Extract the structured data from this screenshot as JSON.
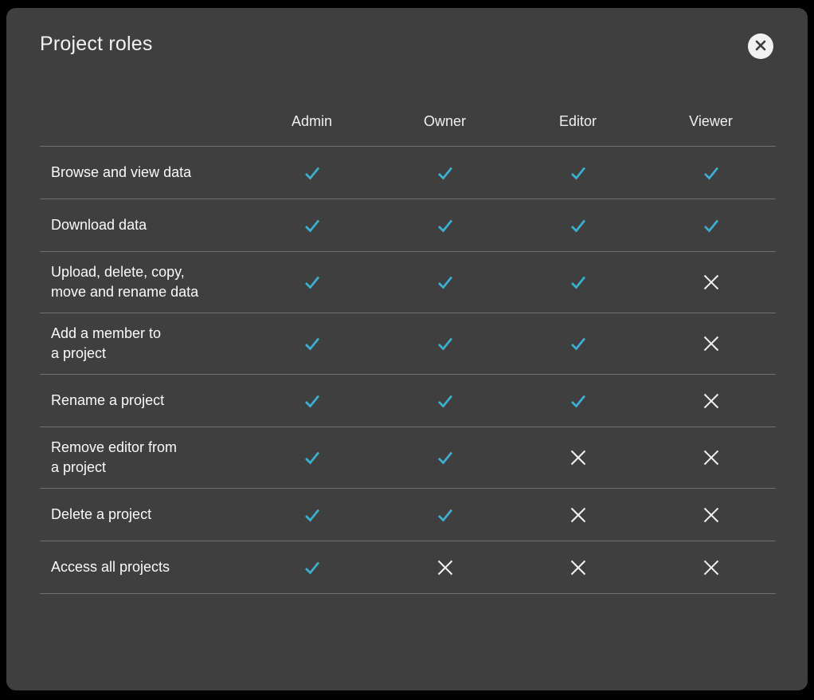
{
  "modal": {
    "title": "Project roles",
    "close_label": "close"
  },
  "table": {
    "columns": [
      "Admin",
      "Owner",
      "Editor",
      "Viewer"
    ],
    "rows": [
      {
        "label": "Browse and view data",
        "permissions": [
          "check",
          "check",
          "check",
          "check"
        ]
      },
      {
        "label": "Download data",
        "permissions": [
          "check",
          "check",
          "check",
          "check"
        ]
      },
      {
        "label": "Upload, delete, copy,\nmove and rename data",
        "permissions": [
          "check",
          "check",
          "check",
          "cross"
        ]
      },
      {
        "label": "Add a member to\na project",
        "permissions": [
          "check",
          "check",
          "check",
          "cross"
        ]
      },
      {
        "label": "Rename a project",
        "permissions": [
          "check",
          "check",
          "check",
          "cross"
        ]
      },
      {
        "label": "Remove editor from\na project",
        "permissions": [
          "check",
          "check",
          "cross",
          "cross"
        ]
      },
      {
        "label": "Delete a project",
        "permissions": [
          "check",
          "check",
          "cross",
          "cross"
        ]
      },
      {
        "label": "Access all projects",
        "permissions": [
          "check",
          "cross",
          "cross",
          "cross"
        ]
      }
    ]
  },
  "colors": {
    "check": "#3cb0d1",
    "cross": "#f2f2f2",
    "modal_bg": "#3f3f3f",
    "divider": "#6f6f6f",
    "page_bg": "#000000",
    "close_circle": "#f1f1f1",
    "close_glyph": "#3a3a3a"
  }
}
